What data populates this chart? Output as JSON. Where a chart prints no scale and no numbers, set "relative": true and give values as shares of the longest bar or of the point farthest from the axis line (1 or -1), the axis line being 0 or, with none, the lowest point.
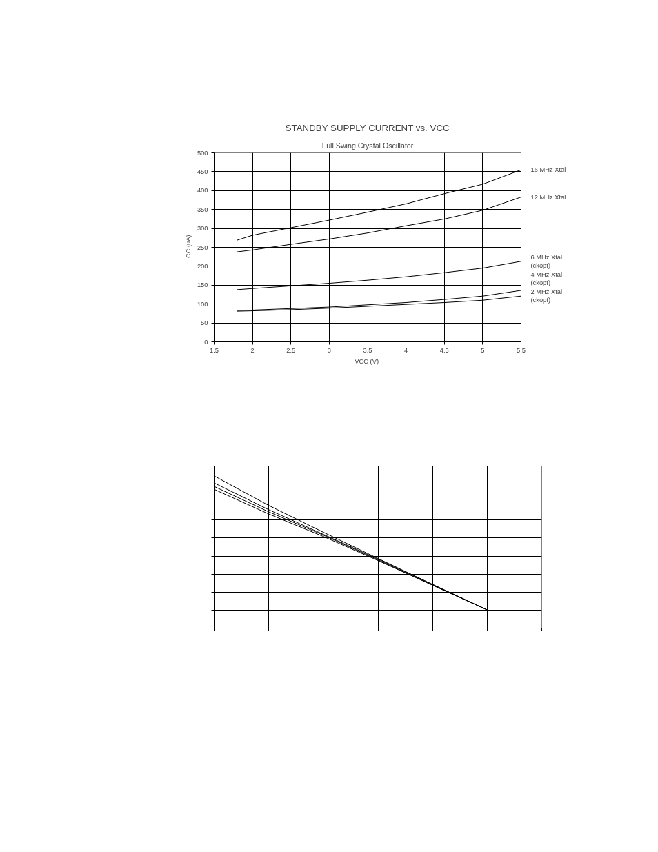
{
  "chart_data": [
    {
      "type": "line",
      "title": "STANDBY SUPPLY CURRENT vs. VCC",
      "subtitle": "Full Swing Crystal Oscillator",
      "xlabel": "VCC  (V)",
      "ylabel": "ICC (uA)",
      "x": [
        1.8,
        2,
        2.5,
        3,
        3.5,
        4,
        4.5,
        5,
        5.5
      ],
      "series": [
        {
          "name": "16 MHz Xtal",
          "color": "#000000",
          "values": [
            269,
            282,
            302,
            322,
            343,
            365,
            392,
            417,
            455
          ]
        },
        {
          "name": "12 MHz Xtal",
          "color": "#000000",
          "values": [
            238,
            243,
            258,
            272,
            288,
            307,
            325,
            348,
            383
          ]
        },
        {
          "name": "6 MHz Xtal\n(ckopt)",
          "color": "#000000",
          "values": [
            138,
            141,
            148,
            155,
            163,
            172,
            183,
            195,
            213
          ]
        },
        {
          "name": "4 MHz Xtal\n(ckopt)",
          "color": "#000000",
          "values": [
            83,
            84,
            88,
            92,
            98,
            104,
            112,
            121,
            136
          ]
        },
        {
          "name": "2 MHz Xtal\n(ckopt)",
          "color": "#000000",
          "values": [
            81,
            82,
            85,
            89,
            94,
            99,
            104,
            110,
            121
          ]
        }
      ],
      "xlim": [
        1.5,
        5.5
      ],
      "xticks": [
        1.5,
        2,
        2.5,
        3,
        3.5,
        4,
        4.5,
        5,
        5.5
      ],
      "ylim": [
        0,
        500
      ],
      "yticks": [
        0,
        50,
        100,
        150,
        200,
        250,
        300,
        350,
        400,
        450,
        500
      ],
      "grid": true,
      "line_style": "solid"
    },
    {
      "type": "line",
      "relative": true,
      "categories": [
        null,
        null,
        null,
        null,
        null,
        null,
        null
      ],
      "series": [
        {
          "color": "#000000",
          "values": [
            1.0,
            0.806,
            0.63,
            0.458,
            0.287,
            0.12,
            null
          ]
        },
        {
          "color": "#000000",
          "values": [
            0.954,
            0.778,
            0.616,
            0.454,
            0.287,
            0.12,
            null
          ]
        },
        {
          "color": "#000000",
          "values": [
            0.931,
            0.764,
            0.611,
            0.449,
            0.282,
            0.12,
            null
          ]
        },
        {
          "color": "#000000",
          "values": [
            0.912,
            0.75,
            0.602,
            0.444,
            0.282,
            0.12,
            null
          ]
        }
      ],
      "grid": true,
      "line_style": "solid"
    }
  ]
}
